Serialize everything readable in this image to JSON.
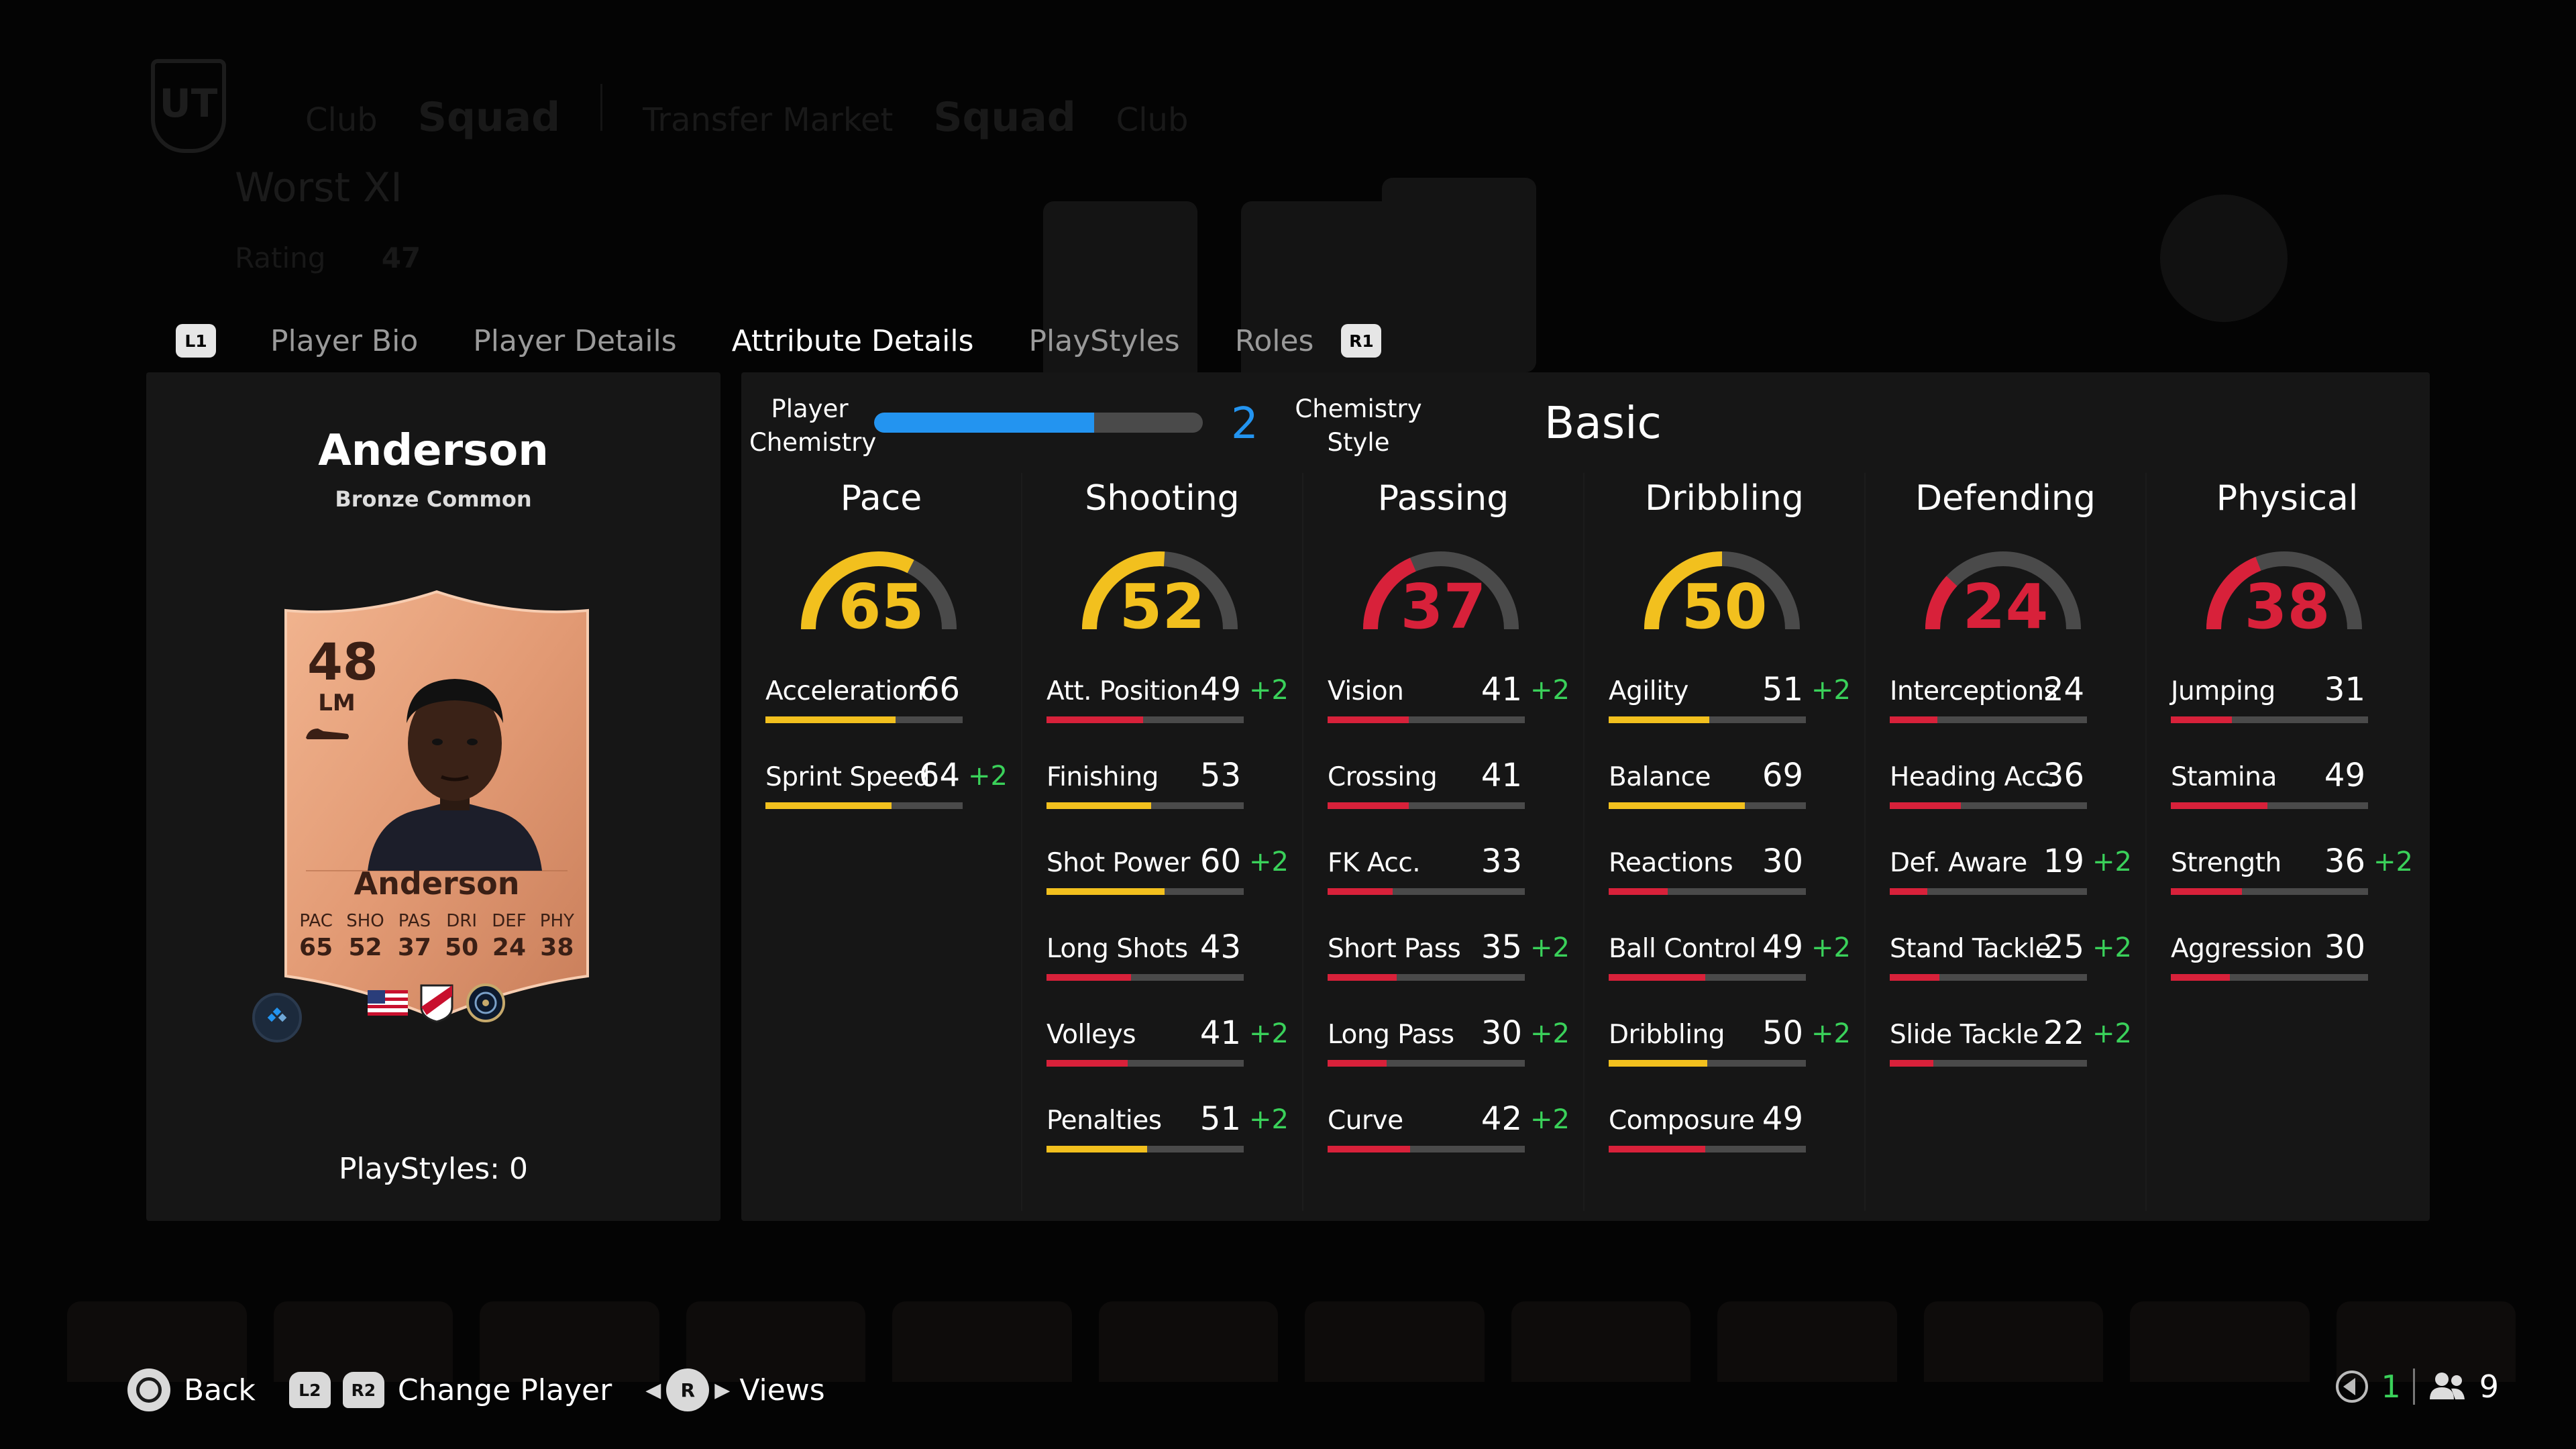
{
  "tabs": {
    "left_button": "L1",
    "right_button": "R1",
    "items": [
      "Player Bio",
      "Player Details",
      "Attribute Details",
      "PlayStyles",
      "Roles"
    ],
    "active": 2
  },
  "player": {
    "name": "Anderson",
    "rarity": "Bronze Common",
    "rating": "48",
    "position": "LM",
    "card_name": "Anderson",
    "card_stats": [
      {
        "label": "PAC",
        "value": "65"
      },
      {
        "label": "SHO",
        "value": "52"
      },
      {
        "label": "PAS",
        "value": "37"
      },
      {
        "label": "DRI",
        "value": "50"
      },
      {
        "label": "DEF",
        "value": "24"
      },
      {
        "label": "PHY",
        "value": "38"
      }
    ],
    "playstyles": "PlayStyles: 0"
  },
  "chemistry": {
    "label": "Player Chemistry",
    "value": "2",
    "fraction": 0.67,
    "style_label": "Chemistry Style",
    "style_value": "Basic",
    "color": "#2394f0"
  },
  "colors": {
    "high": "#f2c01e",
    "low": "#d8213a",
    "boost": "#3ad15a",
    "track": "#4a4a4a"
  },
  "categories": [
    {
      "title": "Pace",
      "value": "65",
      "attributes": [
        {
          "name": "Acceleration",
          "value": "66",
          "boost": ""
        },
        {
          "name": "Sprint Speed",
          "value": "64",
          "boost": "+2"
        }
      ]
    },
    {
      "title": "Shooting",
      "value": "52",
      "attributes": [
        {
          "name": "Att. Position",
          "value": "49",
          "boost": "+2"
        },
        {
          "name": "Finishing",
          "value": "53",
          "boost": ""
        },
        {
          "name": "Shot Power",
          "value": "60",
          "boost": "+2"
        },
        {
          "name": "Long Shots",
          "value": "43",
          "boost": ""
        },
        {
          "name": "Volleys",
          "value": "41",
          "boost": "+2"
        },
        {
          "name": "Penalties",
          "value": "51",
          "boost": "+2"
        }
      ]
    },
    {
      "title": "Passing",
      "value": "37",
      "attributes": [
        {
          "name": "Vision",
          "value": "41",
          "boost": "+2"
        },
        {
          "name": "Crossing",
          "value": "41",
          "boost": ""
        },
        {
          "name": "FK Acc.",
          "value": "33",
          "boost": ""
        },
        {
          "name": "Short Pass",
          "value": "35",
          "boost": "+2"
        },
        {
          "name": "Long Pass",
          "value": "30",
          "boost": "+2"
        },
        {
          "name": "Curve",
          "value": "42",
          "boost": "+2"
        }
      ]
    },
    {
      "title": "Dribbling",
      "value": "50",
      "attributes": [
        {
          "name": "Agility",
          "value": "51",
          "boost": "+2"
        },
        {
          "name": "Balance",
          "value": "69",
          "boost": ""
        },
        {
          "name": "Reactions",
          "value": "30",
          "boost": ""
        },
        {
          "name": "Ball Control",
          "value": "49",
          "boost": "+2"
        },
        {
          "name": "Dribbling",
          "value": "50",
          "boost": "+2"
        },
        {
          "name": "Composure",
          "value": "49",
          "boost": ""
        }
      ]
    },
    {
      "title": "Defending",
      "value": "24",
      "attributes": [
        {
          "name": "Interceptions",
          "value": "24",
          "boost": ""
        },
        {
          "name": "Heading Acc.",
          "value": "36",
          "boost": ""
        },
        {
          "name": "Def. Aware",
          "value": "19",
          "boost": "+2"
        },
        {
          "name": "Stand Tackle",
          "value": "25",
          "boost": "+2"
        },
        {
          "name": "Slide Tackle",
          "value": "22",
          "boost": "+2"
        }
      ]
    },
    {
      "title": "Physical",
      "value": "38",
      "attributes": [
        {
          "name": "Jumping",
          "value": "31",
          "boost": ""
        },
        {
          "name": "Stamina",
          "value": "49",
          "boost": ""
        },
        {
          "name": "Strength",
          "value": "36",
          "boost": "+2"
        },
        {
          "name": "Aggression",
          "value": "30",
          "boost": ""
        }
      ]
    }
  ],
  "footer": {
    "back_label": "Back",
    "l2": "L2",
    "r2": "R2",
    "change_label": "Change Player",
    "stick": "R",
    "views_label": "Views",
    "right_count_1": "1",
    "right_count_2": "9"
  },
  "background": {
    "logo": "UT",
    "nav": [
      "Club",
      "Squad",
      "Transfer Market",
      "Squad",
      "Club"
    ],
    "squad_name": "Worst XI",
    "rating_label": "Rating",
    "rating_value": "47"
  }
}
